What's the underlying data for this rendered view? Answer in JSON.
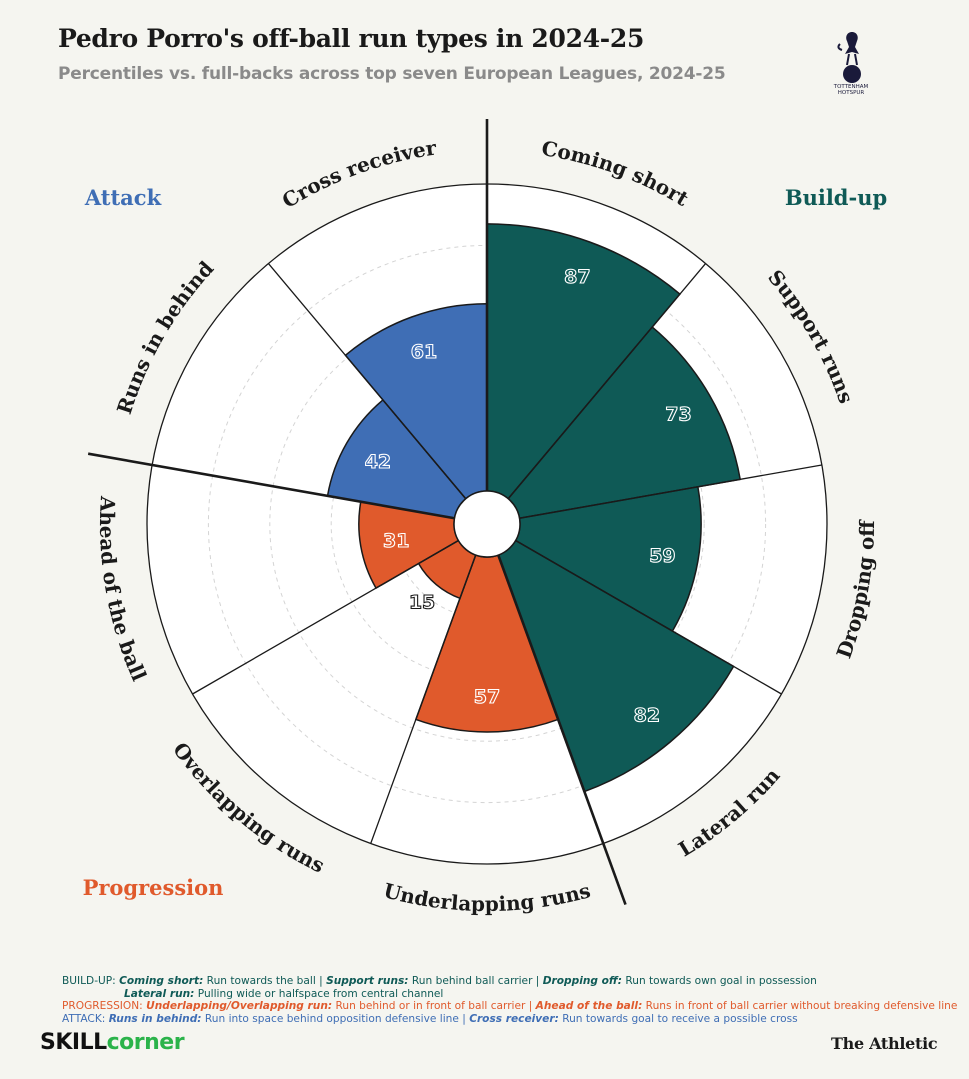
{
  "header": {
    "title": "Pedro Porro's off-ball run types in 2024-25",
    "subtitle": "Percentiles vs. full-backs across top seven European Leagues, 2024-25",
    "crest_text_1": "TOTTENHAM",
    "crest_text_2": "HOTSPUR"
  },
  "colors": {
    "build_up": "#0f5a56",
    "progression": "#e05a2c",
    "attack": "#3f6eb5",
    "background": "#f5f5f0",
    "ring_fill": "#ffffff"
  },
  "chart_data": {
    "type": "polar-bar",
    "title": "Pedro Porro's off-ball run types in 2024-25",
    "subtitle": "Percentiles vs. full-backs across top seven European Leagues, 2024-25",
    "rlim": [
      0,
      100
    ],
    "grid": true,
    "groups": [
      {
        "name": "Build-up",
        "color": "#0f5a56"
      },
      {
        "name": "Progression",
        "color": "#e05a2c"
      },
      {
        "name": "Attack",
        "color": "#3f6eb5"
      }
    ],
    "categories": [
      "Coming short",
      "Support runs",
      "Dropping off",
      "Lateral run",
      "Underlapping runs",
      "Overlapping runs",
      "Ahead of the ball",
      "Runs in behind",
      "Cross receiver"
    ],
    "values": [
      87,
      73,
      59,
      82,
      57,
      15,
      31,
      42,
      61
    ],
    "category_groups": [
      "Build-up",
      "Build-up",
      "Build-up",
      "Build-up",
      "Progression",
      "Progression",
      "Progression",
      "Attack",
      "Attack"
    ]
  },
  "legend": {
    "build_prefix": "BUILD-UP:",
    "coming_short_term": "Coming short:",
    "coming_short_def": " Run towards the ball | ",
    "support_runs_term": "Support runs:",
    "support_runs_def": " Run behind ball carrier | ",
    "dropping_off_term": "Dropping off:",
    "dropping_off_def": " Run towards own goal in possession",
    "lateral_run_term": "Lateral run:",
    "lateral_run_def": " Pulling wide or halfspace from central channel",
    "prog_prefix": "PROGRESSION:",
    "lapping_term": "Underlapping/Overlapping run:",
    "lapping_def": " Run behind or in front of ball carrier | ",
    "ahead_term": "Ahead of the ball:",
    "ahead_def": " Runs in front of ball carrier without breaking defensive line",
    "attack_prefix": "ATTACK:",
    "behind_term": "Runs in behind:",
    "behind_def": " Run into space behind opposition defensive line | ",
    "cross_term": "Cross receiver:",
    "cross_def": " Run towards goal to receive a possible cross"
  },
  "footer": {
    "skill_a": "SKILL",
    "skill_b": "corner",
    "athletic": "The Athletic"
  }
}
